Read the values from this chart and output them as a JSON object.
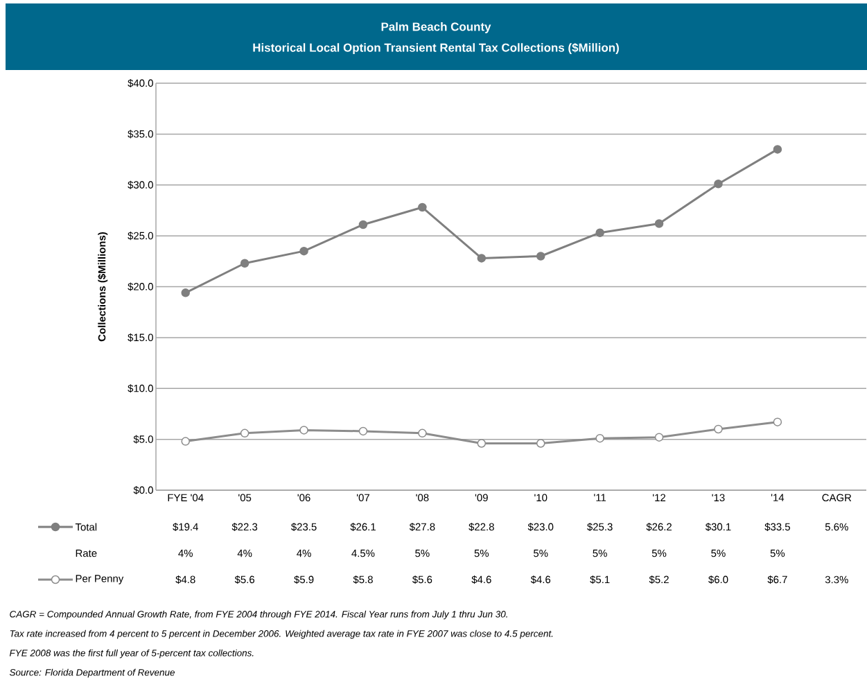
{
  "chart_data": {
    "type": "line",
    "title": "Palm Beach County",
    "subtitle": "Historical Local Option Transient Rental Tax Collections ($Million)",
    "ylabel": "Collections ($Millions)",
    "categories": [
      "FYE '04",
      "'05",
      "'06",
      "'07",
      "'08",
      "'09",
      "'10",
      "'11",
      "'12",
      "'13",
      "'14",
      "CAGR"
    ],
    "series": [
      {
        "name": "Total",
        "color": "#7f7f7f",
        "values": [
          19.4,
          22.3,
          23.5,
          26.1,
          27.8,
          22.8,
          23.0,
          25.3,
          26.2,
          30.1,
          33.5,
          null
        ],
        "value_labels": [
          "$19.4",
          "$22.3",
          "$23.5",
          "$26.1",
          "$27.8",
          "$22.8",
          "$23.0",
          "$25.3",
          "$26.2",
          "$30.1",
          "$33.5",
          "5.6%"
        ]
      },
      {
        "name": "Rate",
        "values": [
          null,
          null,
          null,
          null,
          null,
          null,
          null,
          null,
          null,
          null,
          null,
          null
        ],
        "value_labels": [
          "4%",
          "4%",
          "4%",
          "4.5%",
          "5%",
          "5%",
          "5%",
          "5%",
          "5%",
          "5%",
          "5%",
          null
        ]
      },
      {
        "name": "Per Penny",
        "color": "#8c8c8c",
        "values": [
          4.8,
          5.6,
          5.9,
          5.8,
          5.6,
          4.6,
          4.6,
          5.1,
          5.2,
          6.0,
          6.7,
          null
        ],
        "value_labels": [
          "$4.8",
          "$5.6",
          "$5.9",
          "$5.8",
          "$5.6",
          "$4.6",
          "$4.6",
          "$5.1",
          "$5.2",
          "$6.0",
          "$6.7",
          "3.3%"
        ]
      }
    ],
    "ylim": [
      0,
      40
    ],
    "yticks": [
      {
        "value": 0,
        "label": "$0.0"
      },
      {
        "value": 5,
        "label": "$5.0"
      },
      {
        "value": 10,
        "label": "$10.0"
      },
      {
        "value": 15,
        "label": "$15.0"
      },
      {
        "value": 20,
        "label": "$20.0"
      },
      {
        "value": 25,
        "label": "$25.0"
      },
      {
        "value": 30,
        "label": "$30.0"
      },
      {
        "value": 35,
        "label": "$35.0"
      },
      {
        "value": 40,
        "label": "$40.0"
      }
    ],
    "grid": "y",
    "legend": "bottom left",
    "marker": "circle",
    "line_style": "solid",
    "annotations": [
      "CAGR = Compounded Annual Growth Rate, from FYE 2004 through FYE 2014. Fiscal Year runs from July 1 thru Jun 30.",
      "Tax rate increased from 4 percent to 5 percent in December 2006. Weighted average tax rate in FYE 2007 was close to 4.5 percent.",
      "FYE 2008 was the first full year of 5-percent tax collections.",
      "Source: Florida Department of Revenue"
    ]
  }
}
